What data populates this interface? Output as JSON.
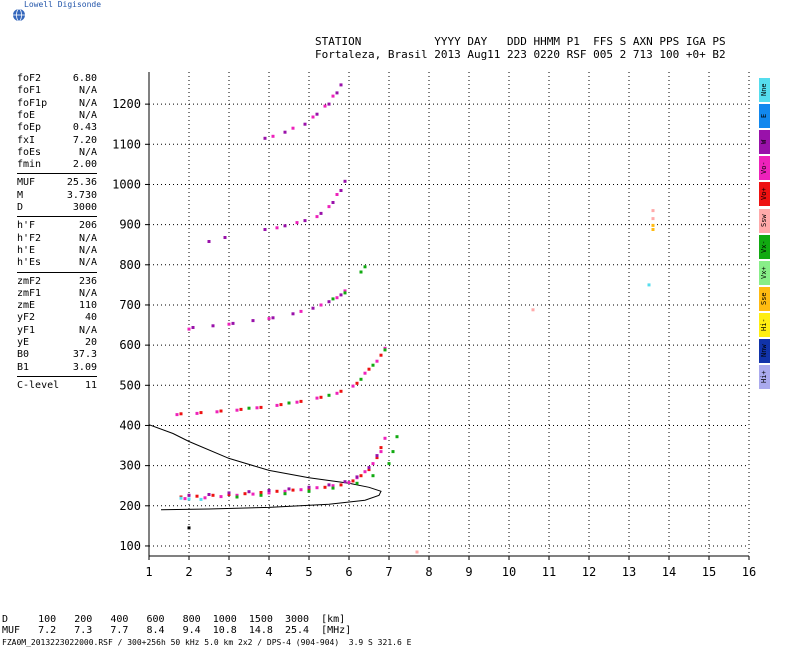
{
  "app": {
    "name": "Lowell Digisonde"
  },
  "header": {
    "line1": "STATION           YYYY DAY   DDD HHMM P1  FFS S AXN PPS IGA PS",
    "line2": "Fortaleza, Brasil 2013 Aug11 223 0220 RSF 005 2 713 100 +0+ B2"
  },
  "params": [
    {
      "label": "foF2",
      "value": "6.80"
    },
    {
      "label": "foF1",
      "value": "N/A"
    },
    {
      "label": "foF1p",
      "value": "N/A"
    },
    {
      "label": "foE",
      "value": "N/A"
    },
    {
      "label": "foEp",
      "value": "0.43"
    },
    {
      "label": "fxI",
      "value": "7.20"
    },
    {
      "label": "foEs",
      "value": "N/A"
    },
    {
      "label": "fmin",
      "value": "2.00"
    },
    {
      "label": "MUF",
      "value": "25.36"
    },
    {
      "label": "M",
      "value": "3.730"
    },
    {
      "label": "D",
      "value": "3000"
    },
    {
      "label": "h'F",
      "value": "206"
    },
    {
      "label": "h'F2",
      "value": "N/A"
    },
    {
      "label": "h'E",
      "value": "N/A"
    },
    {
      "label": "h'Es",
      "value": "N/A"
    },
    {
      "label": "zmF2",
      "value": "236"
    },
    {
      "label": "zmF1",
      "value": "N/A"
    },
    {
      "label": "zmE",
      "value": "110"
    },
    {
      "label": "yF2",
      "value": "40"
    },
    {
      "label": "yF1",
      "value": "N/A"
    },
    {
      "label": "yE",
      "value": "20"
    },
    {
      "label": "B0",
      "value": "37.3"
    },
    {
      "label": "B1",
      "value": "3.09"
    },
    {
      "label": "C-level",
      "value": "11"
    }
  ],
  "legend": [
    {
      "label": "Nne",
      "color": "#55ddee"
    },
    {
      "label": "E",
      "color": "#1188ee"
    },
    {
      "label": "W",
      "color": "#9911aa"
    },
    {
      "label": "Vo-",
      "color": "#ee22bb"
    },
    {
      "label": "Vo+",
      "color": "#ee1111"
    },
    {
      "label": "Ssw",
      "color": "#ffaaaa"
    },
    {
      "label": "Vx-",
      "color": "#11aa11"
    },
    {
      "label": "Vx+",
      "color": "#88ee88"
    },
    {
      "label": "Sse",
      "color": "#ffbb11"
    },
    {
      "label": "Hi-",
      "color": "#ffee11"
    },
    {
      "label": "Nnw",
      "color": "#1133aa"
    },
    {
      "label": "Hi+",
      "color": "#aaaaee"
    }
  ],
  "mufTable": {
    "dLine": "D     100   200   400   600   800  1000  1500  3000  [km]",
    "mufLine": "MUF   7.2   7.3   7.7   8.4   9.4  10.8  14.8  25.4  [MHz]"
  },
  "footer": "FZA0M_2013223022000.RSF / 300+256h 50 kHz 5.0 km 2x2 / DPS-4 (904-904)  3.9 S 321.6 E",
  "chart_data": {
    "type": "scatter",
    "title": "",
    "xlabel": "",
    "ylabel": "",
    "xlim": [
      1,
      16
    ],
    "ylim": [
      75,
      1280
    ],
    "xticks": [
      1,
      2,
      3,
      4,
      5,
      6,
      7,
      8,
      9,
      10,
      11,
      12,
      13,
      14,
      15,
      16
    ],
    "yticks": [
      100,
      200,
      300,
      400,
      500,
      600,
      700,
      800,
      900,
      1000,
      1100,
      1200
    ],
    "grid": true,
    "series": [
      {
        "color": "#ee1111",
        "points": [
          [
            1.8,
            222
          ],
          [
            2.2,
            224
          ],
          [
            2.6,
            226
          ],
          [
            3.0,
            228
          ],
          [
            3.4,
            230
          ],
          [
            3.8,
            233
          ],
          [
            4.2,
            236
          ],
          [
            4.6,
            239
          ],
          [
            5.0,
            242
          ],
          [
            5.4,
            246
          ],
          [
            5.8,
            252
          ],
          [
            6.1,
            262
          ],
          [
            6.3,
            275
          ],
          [
            6.5,
            290
          ],
          [
            6.7,
            320
          ],
          [
            6.8,
            345
          ]
        ]
      },
      {
        "color": "#ee22bb",
        "points": [
          [
            1.9,
            218
          ],
          [
            2.4,
            220
          ],
          [
            2.8,
            223
          ],
          [
            3.2,
            226
          ],
          [
            3.6,
            229
          ],
          [
            4.0,
            232
          ],
          [
            4.4,
            236
          ],
          [
            4.8,
            240
          ],
          [
            5.2,
            245
          ],
          [
            5.6,
            250
          ],
          [
            6.0,
            258
          ],
          [
            6.2,
            270
          ],
          [
            6.4,
            285
          ],
          [
            6.6,
            305
          ],
          [
            6.8,
            335
          ],
          [
            6.9,
            368
          ]
        ]
      },
      {
        "color": "#9911aa",
        "points": [
          [
            2.0,
            226
          ],
          [
            2.5,
            228
          ],
          [
            3.0,
            232
          ],
          [
            3.5,
            235
          ],
          [
            4.0,
            238
          ],
          [
            4.5,
            242
          ],
          [
            5.0,
            246
          ],
          [
            5.5,
            252
          ],
          [
            5.9,
            260
          ],
          [
            6.2,
            272
          ],
          [
            6.5,
            295
          ],
          [
            6.7,
            325
          ]
        ]
      },
      {
        "color": "#11aa11",
        "points": [
          [
            3.2,
            222
          ],
          [
            3.8,
            226
          ],
          [
            4.4,
            230
          ],
          [
            5.0,
            236
          ],
          [
            5.6,
            244
          ],
          [
            6.2,
            256
          ],
          [
            6.6,
            275
          ],
          [
            7.0,
            305
          ],
          [
            7.1,
            335
          ],
          [
            7.2,
            372
          ]
        ]
      },
      {
        "color": "#55ddee",
        "points": [
          [
            1.8,
            219
          ],
          [
            2.0,
            217
          ],
          [
            2.3,
            216
          ]
        ]
      },
      {
        "color": "#ee1111",
        "points": [
          [
            1.8,
            429
          ],
          [
            2.3,
            432
          ],
          [
            2.8,
            436
          ],
          [
            3.3,
            440
          ],
          [
            3.8,
            445
          ],
          [
            4.3,
            452
          ],
          [
            4.8,
            460
          ],
          [
            5.3,
            470
          ],
          [
            5.8,
            485
          ],
          [
            6.2,
            505
          ],
          [
            6.5,
            540
          ],
          [
            6.8,
            575
          ]
        ]
      },
      {
        "color": "#ee22bb",
        "points": [
          [
            1.7,
            427
          ],
          [
            2.2,
            430
          ],
          [
            2.7,
            434
          ],
          [
            3.2,
            438
          ],
          [
            3.7,
            444
          ],
          [
            4.2,
            450
          ],
          [
            4.7,
            458
          ],
          [
            5.2,
            468
          ],
          [
            5.7,
            480
          ],
          [
            6.1,
            498
          ],
          [
            6.4,
            530
          ],
          [
            6.7,
            560
          ],
          [
            6.9,
            592
          ]
        ]
      },
      {
        "color": "#11aa11",
        "points": [
          [
            3.5,
            443
          ],
          [
            4.5,
            456
          ],
          [
            5.5,
            475
          ],
          [
            6.3,
            515
          ],
          [
            6.6,
            550
          ],
          [
            6.9,
            588
          ]
        ]
      },
      {
        "color": "#9911aa",
        "points": [
          [
            2.1,
            644
          ],
          [
            2.6,
            648
          ],
          [
            3.1,
            654
          ],
          [
            3.6,
            661
          ],
          [
            4.1,
            668
          ],
          [
            4.6,
            678
          ],
          [
            5.1,
            692
          ],
          [
            5.5,
            708
          ],
          [
            5.8,
            725
          ]
        ]
      },
      {
        "color": "#ee22bb",
        "points": [
          [
            2.0,
            640
          ],
          [
            3.0,
            652
          ],
          [
            4.0,
            666
          ],
          [
            4.8,
            684
          ],
          [
            5.3,
            700
          ],
          [
            5.7,
            718
          ],
          [
            5.9,
            735
          ]
        ]
      },
      {
        "color": "#11aa11",
        "points": [
          [
            5.6,
            715
          ],
          [
            5.9,
            730
          ],
          [
            6.3,
            782
          ],
          [
            6.4,
            795
          ]
        ]
      },
      {
        "color": "#9911aa",
        "points": [
          [
            2.5,
            858
          ],
          [
            2.9,
            868
          ],
          [
            3.9,
            888
          ],
          [
            4.4,
            897
          ],
          [
            4.9,
            910
          ],
          [
            5.3,
            928
          ],
          [
            5.6,
            955
          ],
          [
            5.8,
            985
          ],
          [
            5.9,
            1008
          ]
        ]
      },
      {
        "color": "#ee22bb",
        "points": [
          [
            4.2,
            892
          ],
          [
            4.7,
            905
          ],
          [
            5.2,
            920
          ],
          [
            5.5,
            945
          ],
          [
            5.7,
            975
          ]
        ]
      },
      {
        "color": "#9911aa",
        "points": [
          [
            3.9,
            1115
          ],
          [
            4.4,
            1130
          ],
          [
            4.9,
            1150
          ],
          [
            5.2,
            1175
          ],
          [
            5.5,
            1200
          ],
          [
            5.7,
            1228
          ],
          [
            5.8,
            1248
          ]
        ]
      },
      {
        "color": "#ee22bb",
        "points": [
          [
            4.1,
            1120
          ],
          [
            4.6,
            1140
          ],
          [
            5.1,
            1168
          ],
          [
            5.4,
            1195
          ],
          [
            5.6,
            1220
          ]
        ]
      },
      {
        "color": "#ffaaaa",
        "points": [
          [
            13.6,
            935
          ],
          [
            13.6,
            915
          ]
        ]
      },
      {
        "color": "#ffbb11",
        "points": [
          [
            13.6,
            898
          ],
          [
            13.6,
            888
          ]
        ]
      },
      {
        "color": "#55ddee",
        "points": [
          [
            13.5,
            750
          ]
        ]
      },
      {
        "color": "#ffaaaa",
        "points": [
          [
            10.6,
            688
          ]
        ]
      },
      {
        "color": "#ffaaaa",
        "points": [
          [
            7.7,
            85
          ]
        ]
      },
      {
        "color": "#000000",
        "points": [
          [
            2.0,
            145
          ]
        ]
      }
    ],
    "profile": [
      [
        1.3,
        190
      ],
      [
        2.5,
        192
      ],
      [
        4.0,
        196
      ],
      [
        5.5,
        204
      ],
      [
        6.4,
        214
      ],
      [
        6.75,
        226
      ],
      [
        6.8,
        236
      ],
      [
        6.5,
        246
      ],
      [
        6.0,
        256
      ],
      [
        5.0,
        270
      ],
      [
        4.0,
        288
      ],
      [
        3.0,
        318
      ],
      [
        2.0,
        360
      ],
      [
        1.6,
        380
      ],
      [
        1.0,
        402
      ]
    ]
  }
}
